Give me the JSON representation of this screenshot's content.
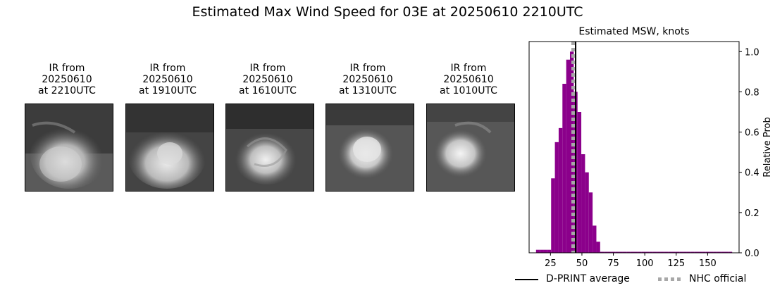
{
  "title": "Estimated Max Wind Speed for 03E at 20250610 2210UTC",
  "panels": [
    {
      "line1": "IR from",
      "line2": "20250610",
      "line3": "at 2210UTC"
    },
    {
      "line1": "IR from",
      "line2": "20250610",
      "line3": "at 1910UTC"
    },
    {
      "line1": "IR from",
      "line2": "20250610",
      "line3": "at 1610UTC"
    },
    {
      "line1": "IR from",
      "line2": "20250610",
      "line3": "at 1310UTC"
    },
    {
      "line1": "IR from",
      "line2": "20250610",
      "line3": "at 1010UTC"
    }
  ],
  "chart_data": {
    "type": "bar",
    "title": "Estimated MSW, knots",
    "xlabel": "",
    "ylabel": "Relative Prob",
    "xlim": [
      8,
      175
    ],
    "ylim": [
      0,
      1.05
    ],
    "xticks": [
      25,
      50,
      75,
      100,
      125,
      150
    ],
    "yticks": [
      0.0,
      0.2,
      0.4,
      0.6,
      0.8,
      1.0
    ],
    "y_axis_side": "right",
    "bin_width": 3,
    "bins": [
      {
        "x": 15,
        "y": 0.015
      },
      {
        "x": 18,
        "y": 0.015
      },
      {
        "x": 21,
        "y": 0.015
      },
      {
        "x": 24,
        "y": 0.015
      },
      {
        "x": 27,
        "y": 0.37
      },
      {
        "x": 30,
        "y": 0.55
      },
      {
        "x": 33,
        "y": 0.62
      },
      {
        "x": 36,
        "y": 0.84
      },
      {
        "x": 39,
        "y": 0.96
      },
      {
        "x": 42,
        "y": 1.0
      },
      {
        "x": 45,
        "y": 0.8
      },
      {
        "x": 48,
        "y": 0.7
      },
      {
        "x": 51,
        "y": 0.49
      },
      {
        "x": 54,
        "y": 0.4
      },
      {
        "x": 57,
        "y": 0.3
      },
      {
        "x": 60,
        "y": 0.135
      },
      {
        "x": 63,
        "y": 0.055
      },
      {
        "x": 66,
        "y": 0.005
      },
      {
        "x": 69,
        "y": 0.005
      },
      {
        "x": 72,
        "y": 0.005
      },
      {
        "x": 75,
        "y": 0.005
      },
      {
        "x": 78,
        "y": 0.005
      },
      {
        "x": 81,
        "y": 0.005
      },
      {
        "x": 84,
        "y": 0.005
      },
      {
        "x": 87,
        "y": 0.005
      },
      {
        "x": 90,
        "y": 0.005
      },
      {
        "x": 93,
        "y": 0.005
      },
      {
        "x": 96,
        "y": 0.005
      },
      {
        "x": 99,
        "y": 0.005
      },
      {
        "x": 102,
        "y": 0.005
      },
      {
        "x": 105,
        "y": 0.005
      },
      {
        "x": 108,
        "y": 0.005
      },
      {
        "x": 111,
        "y": 0.005
      },
      {
        "x": 114,
        "y": 0.005
      },
      {
        "x": 117,
        "y": 0.005
      },
      {
        "x": 120,
        "y": 0.005
      },
      {
        "x": 123,
        "y": 0.005
      },
      {
        "x": 126,
        "y": 0.005
      },
      {
        "x": 129,
        "y": 0.005
      },
      {
        "x": 132,
        "y": 0.005
      },
      {
        "x": 135,
        "y": 0.005
      },
      {
        "x": 138,
        "y": 0.005
      },
      {
        "x": 141,
        "y": 0.005
      },
      {
        "x": 144,
        "y": 0.005
      },
      {
        "x": 147,
        "y": 0.005
      },
      {
        "x": 150,
        "y": 0.005
      },
      {
        "x": 153,
        "y": 0.005
      },
      {
        "x": 156,
        "y": 0.005
      },
      {
        "x": 159,
        "y": 0.005
      },
      {
        "x": 162,
        "y": 0.005
      },
      {
        "x": 165,
        "y": 0.005
      },
      {
        "x": 168,
        "y": 0.005
      }
    ],
    "bar_color": "#8b008b",
    "dprint_average": 45,
    "nhc_official": 43,
    "legend": {
      "placement": "bottom",
      "items": [
        {
          "label": "D-PRINT average",
          "style": "solid",
          "color": "#000000"
        },
        {
          "label": "NHC official",
          "style": "dotted",
          "color": "#a8a8a8"
        }
      ]
    }
  }
}
